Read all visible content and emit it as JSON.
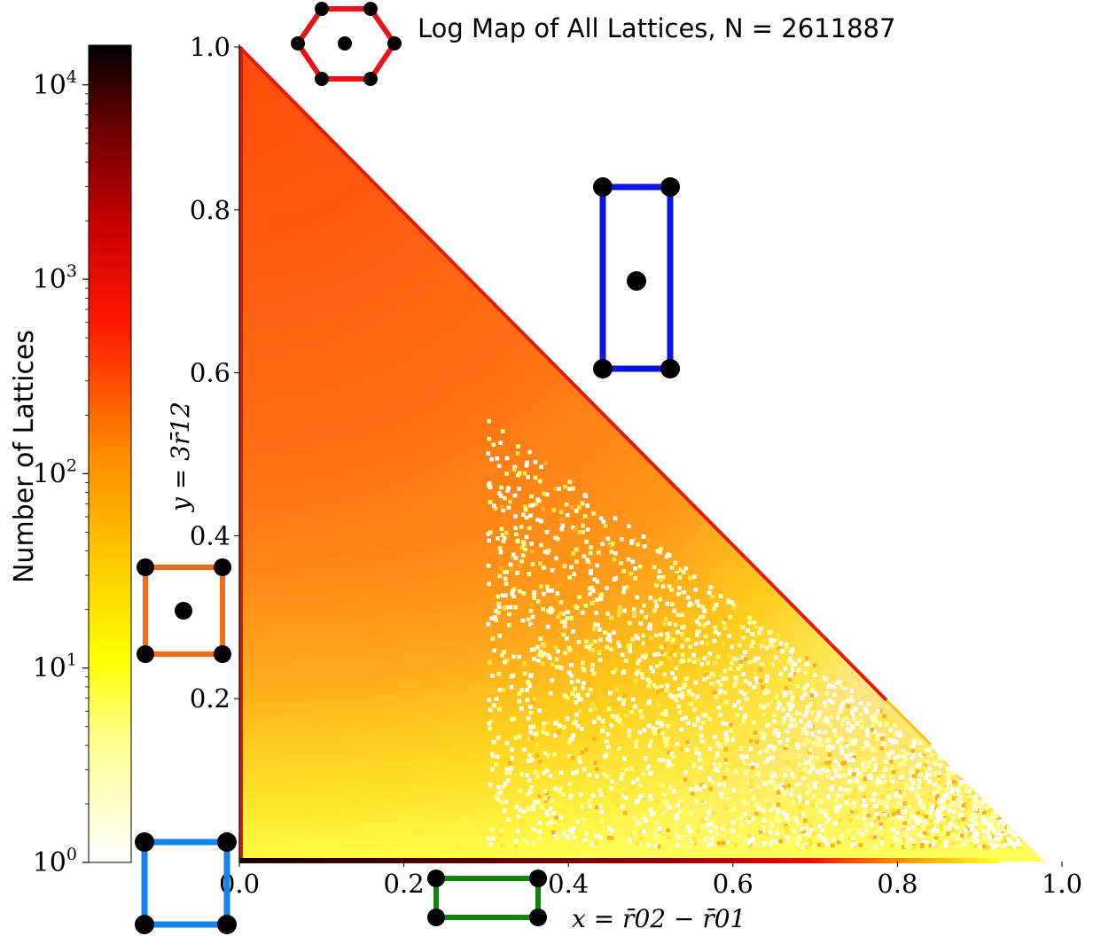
{
  "chart_data": {
    "type": "heatmap",
    "title": "Log Map of All Lattices, N = 2611887",
    "xlabel": "x = r̄02 − r̄01",
    "ylabel": "y = 3r̄12",
    "xlim": [
      0,
      1.0
    ],
    "ylim": [
      0,
      1.0
    ],
    "x_ticks": [
      "0.0",
      "0.2",
      "0.4",
      "0.6",
      "0.8",
      "1.0"
    ],
    "y_ticks": [
      "0.2",
      "0.4",
      "0.6",
      "0.8",
      "1.0"
    ],
    "x_tick_values": [
      0.0,
      0.2,
      0.4,
      0.6,
      0.8,
      1.0
    ],
    "y_tick_values": [
      0.2,
      0.4,
      0.6,
      0.8,
      1.0
    ],
    "colorbar": {
      "label": "Number of Lattices",
      "scale": "log",
      "range": [
        1,
        16000
      ],
      "tick_labels": [
        {
          "base": "10",
          "exp": "0",
          "value": 1
        },
        {
          "base": "10",
          "exp": "1",
          "value": 10
        },
        {
          "base": "10",
          "exp": "2",
          "value": 100
        },
        {
          "base": "10",
          "exp": "3",
          "value": 1000
        },
        {
          "base": "10",
          "exp": "4",
          "value": 10000
        }
      ],
      "colormap": "hot_r"
    },
    "region": "x + y <= 1",
    "density_features": {
      "diagonal_edge_value": 300,
      "x_axis_line_value": 10000,
      "x_axis_line_extent": [
        0.0,
        0.93
      ],
      "left_edge_value": 800,
      "upper_left_value": 150,
      "lower_right_value": 1
    }
  },
  "insets": [
    {
      "name": "hexagonal-lattice-inset",
      "color": "#e8121a"
    },
    {
      "name": "tall-centered-rectangular-lattice-inset",
      "color": "#0a16e8"
    },
    {
      "name": "centered-square-lattice-inset",
      "color": "#f26a1b"
    },
    {
      "name": "square-lattice-inset",
      "color": "#1283f0"
    },
    {
      "name": "wide-rectangular-lattice-inset",
      "color": "#11820f"
    }
  ]
}
